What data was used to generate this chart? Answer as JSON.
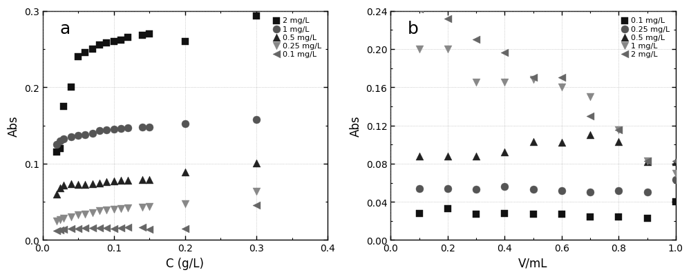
{
  "panel_a": {
    "label": "a",
    "xlabel": "C (g/L)",
    "ylabel": "Abs",
    "xlim": [
      0.0,
      0.4
    ],
    "ylim": [
      0.0,
      0.3
    ],
    "xticks": [
      0.0,
      0.1,
      0.2,
      0.3,
      0.4
    ],
    "yticks": [
      0.0,
      0.1,
      0.2,
      0.3
    ],
    "series": [
      {
        "label": "2 mg/L",
        "marker": "s",
        "color": "#111111",
        "markersize": 5,
        "x": [
          0.02,
          0.025,
          0.03,
          0.04,
          0.05,
          0.06,
          0.07,
          0.08,
          0.09,
          0.1,
          0.11,
          0.12,
          0.14,
          0.15,
          0.2,
          0.3
        ],
        "y": [
          0.115,
          0.12,
          0.175,
          0.2,
          0.24,
          0.245,
          0.25,
          0.255,
          0.258,
          0.26,
          0.262,
          0.265,
          0.268,
          0.27,
          0.26,
          0.293
        ]
      },
      {
        "label": "1 mg/L",
        "marker": "o",
        "color": "#555555",
        "markersize": 5,
        "x": [
          0.02,
          0.025,
          0.03,
          0.04,
          0.05,
          0.06,
          0.07,
          0.08,
          0.09,
          0.1,
          0.11,
          0.12,
          0.14,
          0.15,
          0.2,
          0.3
        ],
        "y": [
          0.125,
          0.13,
          0.132,
          0.135,
          0.137,
          0.138,
          0.14,
          0.143,
          0.144,
          0.145,
          0.146,
          0.147,
          0.148,
          0.148,
          0.152,
          0.158
        ]
      },
      {
        "label": "0.5 mg/L",
        "marker": "^",
        "color": "#222222",
        "markersize": 5,
        "x": [
          0.02,
          0.025,
          0.03,
          0.04,
          0.05,
          0.06,
          0.07,
          0.08,
          0.09,
          0.1,
          0.11,
          0.12,
          0.14,
          0.15,
          0.2,
          0.3
        ],
        "y": [
          0.06,
          0.068,
          0.072,
          0.074,
          0.073,
          0.073,
          0.074,
          0.075,
          0.076,
          0.077,
          0.078,
          0.078,
          0.079,
          0.079,
          0.089,
          0.101
        ]
      },
      {
        "label": "0.25 mg/L",
        "marker": "v",
        "color": "#888888",
        "markersize": 5,
        "x": [
          0.02,
          0.025,
          0.03,
          0.04,
          0.05,
          0.06,
          0.07,
          0.08,
          0.09,
          0.1,
          0.11,
          0.12,
          0.14,
          0.15,
          0.2,
          0.3
        ],
        "y": [
          0.025,
          0.027,
          0.028,
          0.03,
          0.033,
          0.034,
          0.036,
          0.038,
          0.039,
          0.04,
          0.041,
          0.042,
          0.043,
          0.044,
          0.047,
          0.064
        ]
      },
      {
        "label": "0.1 mg/L",
        "marker": "<",
        "color": "#666666",
        "markersize": 5,
        "x": [
          0.02,
          0.025,
          0.03,
          0.04,
          0.05,
          0.06,
          0.07,
          0.08,
          0.09,
          0.1,
          0.11,
          0.12,
          0.14,
          0.15,
          0.2,
          0.3
        ],
        "y": [
          0.012,
          0.013,
          0.014,
          0.015,
          0.015,
          0.016,
          0.016,
          0.016,
          0.016,
          0.015,
          0.016,
          0.017,
          0.017,
          0.014,
          0.015,
          0.046
        ]
      }
    ]
  },
  "panel_b": {
    "label": "b",
    "xlabel": "V/mL",
    "ylabel": "Abs",
    "xlim": [
      0.0,
      1.0
    ],
    "ylim": [
      0.0,
      0.24
    ],
    "xticks": [
      0.0,
      0.2,
      0.4,
      0.6,
      0.8,
      1.0
    ],
    "yticks": [
      0.0,
      0.04,
      0.08,
      0.12,
      0.16,
      0.2,
      0.24
    ],
    "series": [
      {
        "label": "0.1 mg/L",
        "marker": "s",
        "color": "#111111",
        "markersize": 5,
        "x": [
          0.1,
          0.2,
          0.3,
          0.4,
          0.5,
          0.6,
          0.7,
          0.8,
          0.9,
          1.0
        ],
        "y": [
          0.028,
          0.033,
          0.027,
          0.028,
          0.027,
          0.027,
          0.024,
          0.024,
          0.023,
          0.04
        ]
      },
      {
        "label": "0.25 mg/L",
        "marker": "o",
        "color": "#555555",
        "markersize": 5,
        "x": [
          0.1,
          0.2,
          0.3,
          0.4,
          0.5,
          0.6,
          0.7,
          0.8,
          0.9,
          1.0
        ],
        "y": [
          0.054,
          0.054,
          0.053,
          0.056,
          0.053,
          0.052,
          0.05,
          0.052,
          0.05,
          0.063
        ]
      },
      {
        "label": "0.5 mg/L",
        "marker": "^",
        "color": "#222222",
        "markersize": 5,
        "x": [
          0.1,
          0.2,
          0.3,
          0.4,
          0.5,
          0.6,
          0.7,
          0.8,
          0.9,
          1.0
        ],
        "y": [
          0.088,
          0.088,
          0.088,
          0.092,
          0.103,
          0.102,
          0.11,
          0.103,
          0.082,
          0.082
        ]
      },
      {
        "label": "1 mg/L",
        "marker": "v",
        "color": "#888888",
        "markersize": 5,
        "x": [
          0.1,
          0.2,
          0.3,
          0.4,
          0.5,
          0.6,
          0.7,
          0.8,
          0.9,
          1.0
        ],
        "y": [
          0.2,
          0.2,
          0.165,
          0.165,
          0.168,
          0.16,
          0.15,
          0.115,
          0.083,
          0.07
        ]
      },
      {
        "label": "2 mg/L",
        "marker": "<",
        "color": "#666666",
        "markersize": 5,
        "x": [
          0.1,
          0.2,
          0.3,
          0.4,
          0.5,
          0.6,
          0.7,
          0.8,
          0.9,
          1.0
        ],
        "y": [
          0.242,
          0.232,
          0.21,
          0.196,
          0.17,
          0.17,
          0.13,
          0.115,
          0.083,
          0.083
        ]
      }
    ]
  },
  "fig_width": 10.0,
  "fig_height": 4.02,
  "dpi": 100
}
